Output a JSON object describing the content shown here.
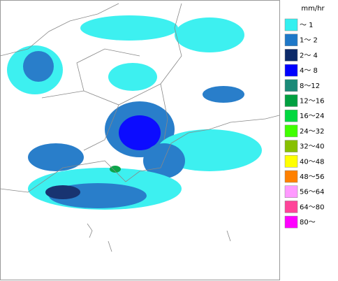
{
  "legend": {
    "unit": "mm/hr",
    "items": [
      {
        "label": "～ 1",
        "color": "#33f0f0"
      },
      {
        "label": "1～ 2",
        "color": "#1e78c8"
      },
      {
        "label": "2～ 4",
        "color": "#0c2a6a"
      },
      {
        "label": "4～ 8",
        "color": "#0000ff"
      },
      {
        "label": "8～12",
        "color": "#1a8a78"
      },
      {
        "label": "12～16",
        "color": "#00a040"
      },
      {
        "label": "16～24",
        "color": "#00d840"
      },
      {
        "label": "24～32",
        "color": "#40ff00"
      },
      {
        "label": "32～40",
        "color": "#88c000"
      },
      {
        "label": "40～48",
        "color": "#ffff00"
      },
      {
        "label": "48～56",
        "color": "#ff8000"
      },
      {
        "label": "56～64",
        "color": "#ff99ff"
      },
      {
        "label": "64～80",
        "color": "#ff4499"
      },
      {
        "label": "80～",
        "color": "#ff00ff"
      }
    ]
  }
}
